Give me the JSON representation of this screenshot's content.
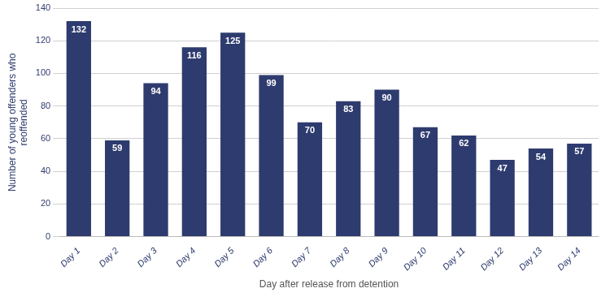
{
  "chart_data": {
    "type": "bar",
    "categories": [
      "Day 1",
      "Day 2",
      "Day 3",
      "Day 4",
      "Day 5",
      "Day 6",
      "Day 7",
      "Day 8",
      "Day 9",
      "Day 10",
      "Day 11",
      "Day 12",
      "Day 13",
      "Day 14"
    ],
    "values": [
      132,
      59,
      94,
      116,
      125,
      99,
      70,
      83,
      90,
      67,
      62,
      47,
      54,
      57
    ],
    "color": "#2E3B6E",
    "xlabel": "Day after release from detention",
    "ylabel": "Number of young offenders who\nreoffended",
    "ylim": [
      0,
      140
    ],
    "yticks": [
      0,
      20,
      40,
      60,
      80,
      100,
      120,
      140
    ],
    "grid": true,
    "data_labels": true
  }
}
